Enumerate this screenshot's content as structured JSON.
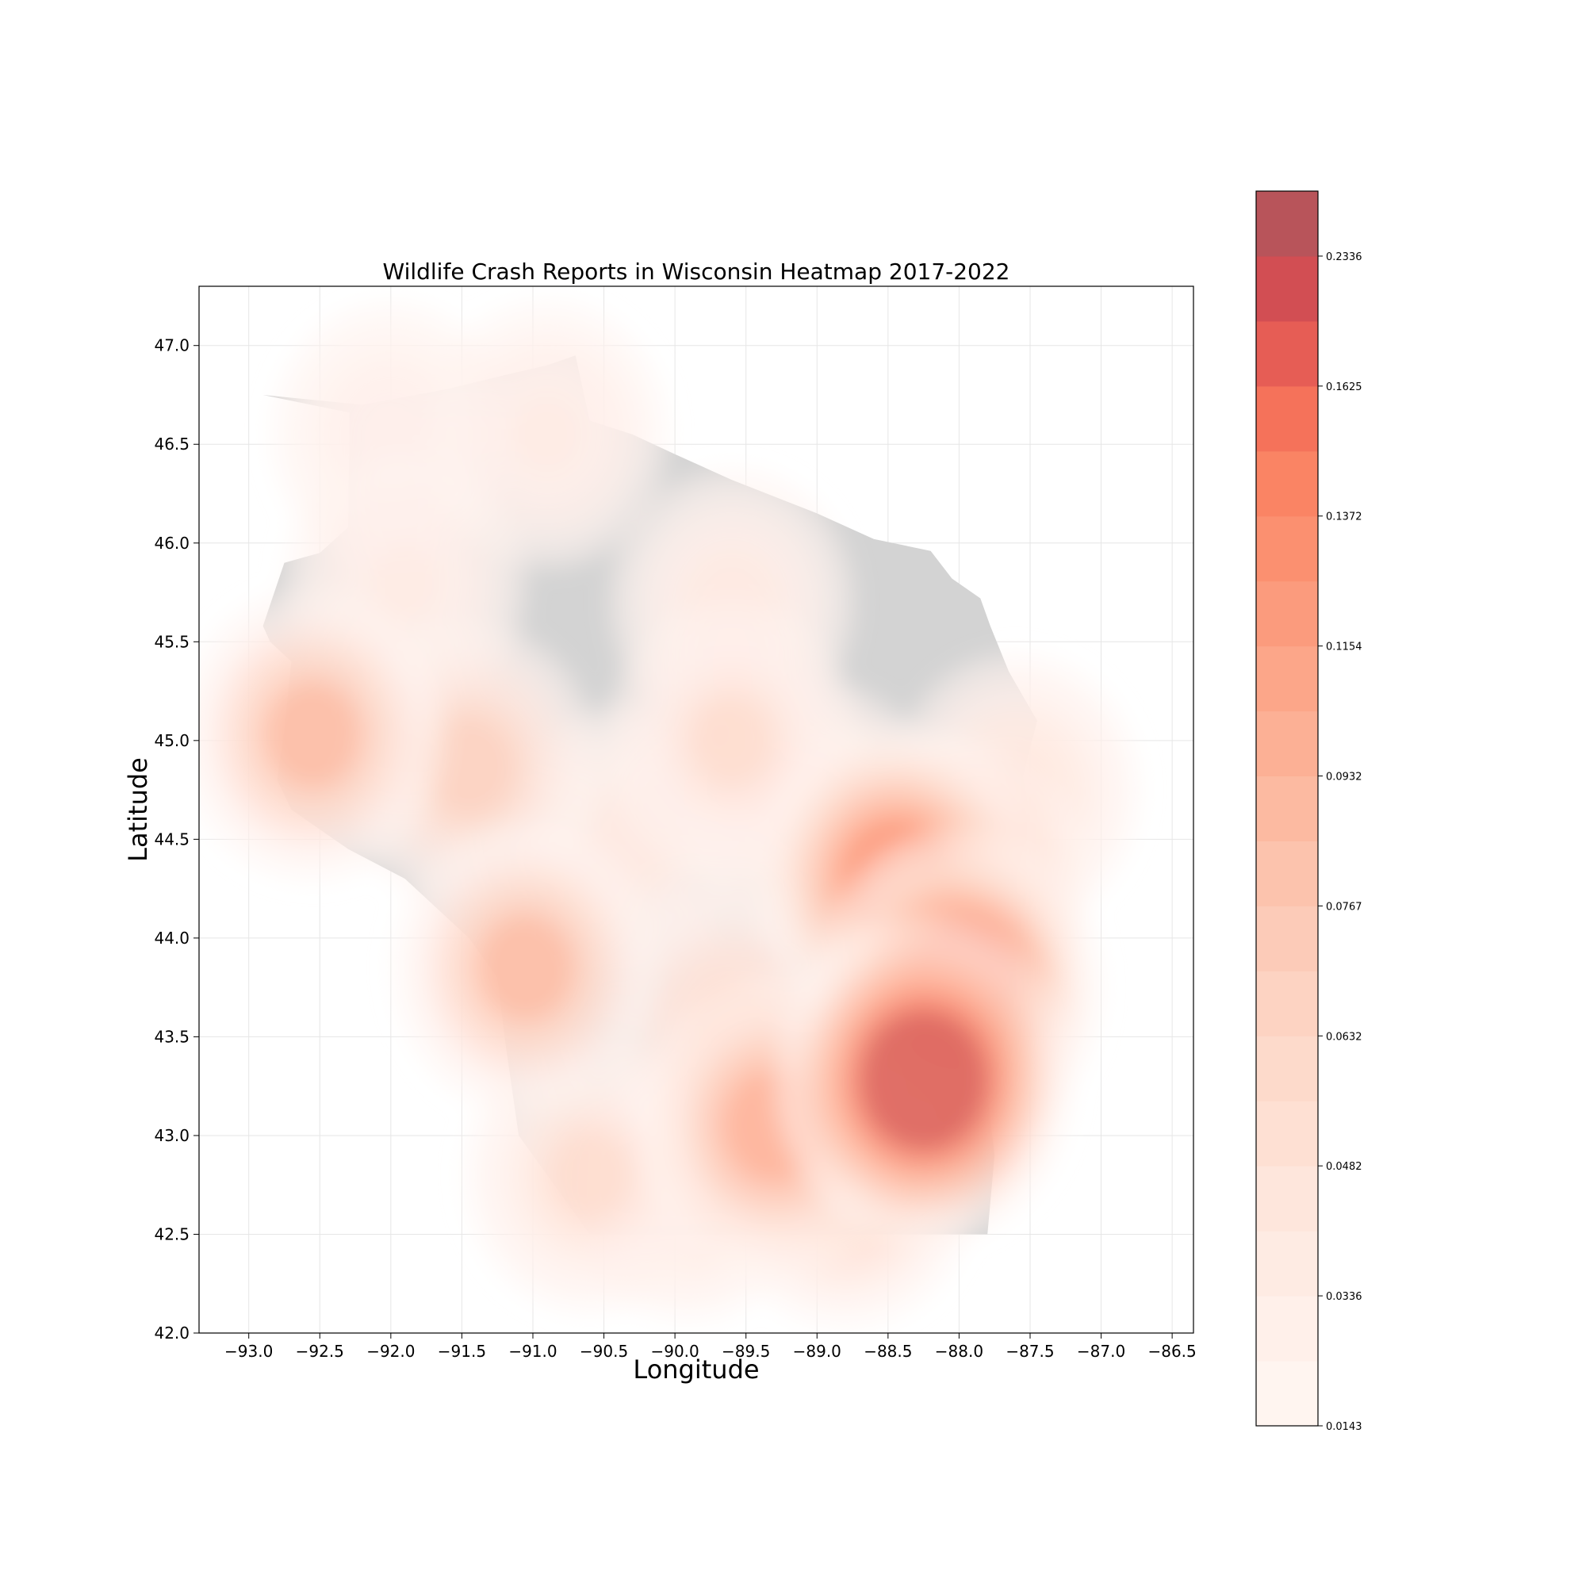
{
  "chart_data": {
    "type": "heatmap",
    "title": "Wildlife Crash Reports in Wisconsin Heatmap 2017-2022",
    "xlabel": "Longitude",
    "ylabel": "Latitude",
    "xlim": [
      -93.35,
      -86.35
    ],
    "ylim": [
      42.0,
      47.3
    ],
    "x_ticks": [
      -93.0,
      -92.5,
      -92.0,
      -91.5,
      -91.0,
      -90.5,
      -90.0,
      -89.5,
      -89.0,
      -88.5,
      -88.0,
      -87.5,
      -87.0,
      -86.5
    ],
    "y_ticks": [
      42.0,
      42.5,
      43.0,
      43.5,
      44.0,
      44.5,
      45.0,
      45.5,
      46.0,
      46.5,
      47.0
    ],
    "x_tick_labels": [
      "−93.0",
      "−92.5",
      "−92.0",
      "−91.5",
      "−91.0",
      "−90.5",
      "−90.0",
      "−89.5",
      "−89.0",
      "−88.5",
      "−88.0",
      "−87.5",
      "−87.0",
      "−86.5"
    ],
    "y_tick_labels": [
      "42.0",
      "42.5",
      "43.0",
      "43.5",
      "44.0",
      "44.5",
      "45.0",
      "45.5",
      "46.0",
      "46.5",
      "47.0"
    ],
    "grid": true,
    "basemap_color": "#d3d3d3",
    "colormap": "Reds",
    "colorbar": {
      "tick_labels": [
        "0.0143",
        "0.0336",
        "0.0482",
        "0.0632",
        "0.0767",
        "0.0932",
        "0.1154",
        "0.1372",
        "0.1625",
        "0.2336"
      ],
      "levels": 19,
      "colors": [
        "#fff5f0",
        "#fff0ea",
        "#fee9e0",
        "#fee1d4",
        "#fdd5c4",
        "#fcc8b3",
        "#fcbba1",
        "#fcab8f",
        "#fc9f81",
        "#fb9070",
        "#fb8060",
        "#f5725a",
        "#ef6453",
        "#e4504a",
        "#c23a42"
      ]
    },
    "state_outline": [
      [
        -92.9,
        46.75
      ],
      [
        -92.2,
        46.7
      ],
      [
        -91.6,
        46.78
      ],
      [
        -91.2,
        46.85
      ],
      [
        -90.9,
        46.9
      ],
      [
        -90.7,
        46.95
      ],
      [
        -90.6,
        46.62
      ],
      [
        -90.3,
        46.55
      ],
      [
        -90.0,
        46.45
      ],
      [
        -89.6,
        46.32
      ],
      [
        -89.0,
        46.15
      ],
      [
        -88.6,
        46.02
      ],
      [
        -88.2,
        45.96
      ],
      [
        -88.05,
        45.82
      ],
      [
        -87.85,
        45.72
      ],
      [
        -87.78,
        45.58
      ],
      [
        -87.65,
        45.35
      ],
      [
        -87.45,
        45.1
      ],
      [
        -87.55,
        44.82
      ],
      [
        -87.5,
        44.6
      ],
      [
        -87.6,
        44.3
      ],
      [
        -87.55,
        44.0
      ],
      [
        -87.7,
        43.6
      ],
      [
        -87.8,
        43.2
      ],
      [
        -87.75,
        42.9
      ],
      [
        -87.8,
        42.5
      ],
      [
        -90.6,
        42.5
      ],
      [
        -90.75,
        42.65
      ],
      [
        -91.1,
        43.0
      ],
      [
        -91.2,
        43.5
      ],
      [
        -91.25,
        43.8
      ],
      [
        -91.45,
        44.0
      ],
      [
        -91.9,
        44.3
      ],
      [
        -92.3,
        44.45
      ],
      [
        -92.7,
        44.65
      ],
      [
        -92.8,
        44.8
      ],
      [
        -92.75,
        45.05
      ],
      [
        -92.7,
        45.4
      ],
      [
        -92.85,
        45.5
      ],
      [
        -92.9,
        45.58
      ],
      [
        -92.75,
        45.9
      ],
      [
        -92.5,
        45.95
      ],
      [
        -92.3,
        46.08
      ],
      [
        -92.29,
        46.66
      ]
    ],
    "density_peaks": [
      {
        "lon": -88.25,
        "lat": 43.28,
        "density": 0.2336
      },
      {
        "lon": -88.0,
        "lat": 43.75,
        "density": 0.19
      },
      {
        "lon": -88.45,
        "lat": 44.3,
        "density": 0.17
      },
      {
        "lon": -88.05,
        "lat": 44.25,
        "density": 0.15
      },
      {
        "lon": -89.3,
        "lat": 43.05,
        "density": 0.14
      },
      {
        "lon": -92.55,
        "lat": 45.03,
        "density": 0.12
      },
      {
        "lon": -91.05,
        "lat": 43.85,
        "density": 0.12
      },
      {
        "lon": -91.45,
        "lat": 44.87,
        "density": 0.1
      },
      {
        "lon": -88.8,
        "lat": 42.75,
        "density": 0.1
      },
      {
        "lon": -89.6,
        "lat": 43.55,
        "density": 0.08
      },
      {
        "lon": -90.6,
        "lat": 42.8,
        "density": 0.07
      },
      {
        "lon": -89.6,
        "lat": 45.0,
        "density": 0.07
      },
      {
        "lon": -89.0,
        "lat": 44.6,
        "density": 0.065
      },
      {
        "lon": -89.9,
        "lat": 42.75,
        "density": 0.06
      },
      {
        "lon": -87.6,
        "lat": 44.75,
        "density": 0.06
      },
      {
        "lon": -90.3,
        "lat": 44.5,
        "density": 0.048
      },
      {
        "lon": -89.6,
        "lat": 45.7,
        "density": 0.045
      },
      {
        "lon": -91.9,
        "lat": 45.8,
        "density": 0.04
      },
      {
        "lon": -90.9,
        "lat": 46.55,
        "density": 0.04
      },
      {
        "lon": -92.0,
        "lat": 46.55,
        "density": 0.03
      }
    ]
  }
}
